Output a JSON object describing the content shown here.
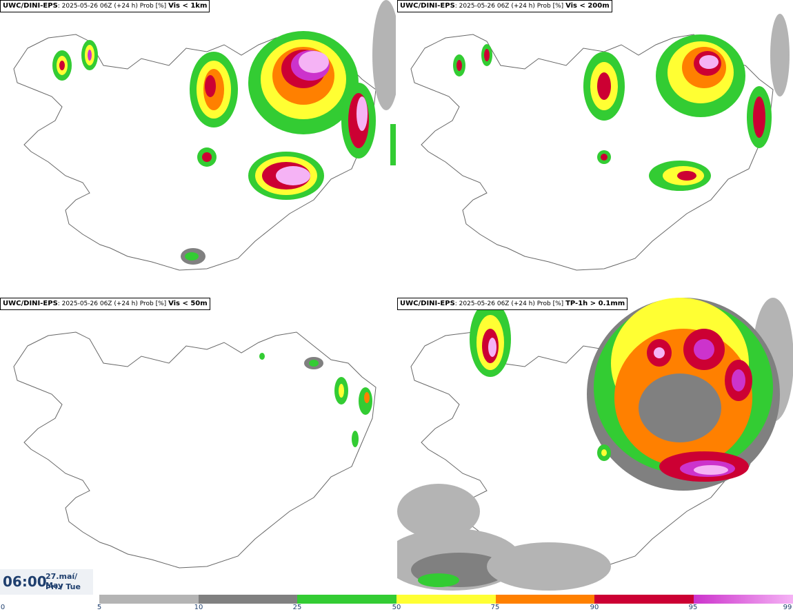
{
  "panels": [
    {
      "model": "UWC/DINI-EPS",
      "run": "2025-05-26 06Z (+24 h) Prob [%]",
      "variable": "Vis < 1km"
    },
    {
      "model": "UWC/DINI-EPS",
      "run": "2025-05-26 06Z (+24 h) Prob [%]",
      "variable": "Vis < 200m"
    },
    {
      "model": "UWC/DINI-EPS",
      "run": "2025-05-26 06Z (+24 h) Prob [%]",
      "variable": "Vis < 50m"
    },
    {
      "model": "UWC/DINI-EPS",
      "run": "2025-05-26 06Z (+24 h) Prob [%]",
      "variable": "TP-1h > 0.1mm"
    }
  ],
  "valid_time": {
    "hour": "06:00",
    "date": "27.maí/ May",
    "day": "Þri./ Tue"
  },
  "colorbar": {
    "ticks": [
      "0",
      "5",
      "10",
      "25",
      "50",
      "75",
      "90",
      "95",
      "99"
    ],
    "colors": [
      "#ffffff",
      "#b4b4b4",
      "#808080",
      "#33cc33",
      "#ffff33",
      "#ff8000",
      "#cc0033",
      "#cc33cc",
      "#f5b3f5"
    ]
  }
}
